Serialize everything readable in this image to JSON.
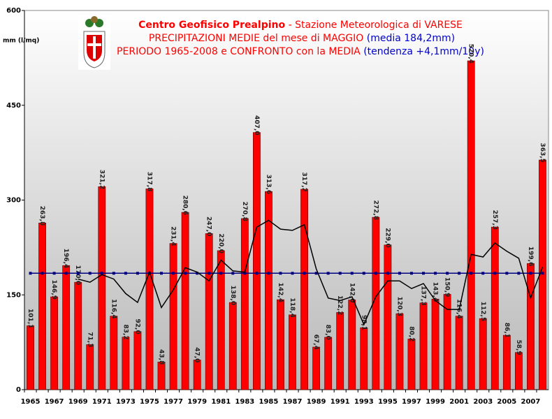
{
  "chart_data": {
    "type": "bar",
    "title_parts": [
      {
        "text": "Centro Geofisico Prealpino",
        "color": "#ff0000",
        "bold": true
      },
      {
        "text": " - Stazione Meteorologica di VARESE",
        "color": "#ff0000",
        "bold": false
      }
    ],
    "subtitle_lines": [
      [
        {
          "text": "PRECIPITAZIONI MEDIE del mese di MAGGIO",
          "color": "#ff0000"
        },
        {
          "text": " (media 184,2mm)",
          "color": "#0000cc"
        }
      ],
      [
        {
          "text": "PERIODO 1965-2008 e CONFRONTO con la MEDIA",
          "color": "#ff0000"
        },
        {
          "text": " (tendenza +4,1mm/10y)",
          "color": "#0000cc"
        }
      ]
    ],
    "y_label": "mm (l/mq)",
    "categories": [
      "1965",
      null,
      "1967",
      null,
      "1969",
      null,
      "1971",
      null,
      "1973",
      null,
      "1975",
      null,
      "1977",
      null,
      "1979",
      null,
      "1981",
      null,
      "1983",
      null,
      "1985",
      null,
      "1987",
      null,
      "1989",
      null,
      "1991",
      null,
      "1993",
      null,
      "1995",
      null,
      "1997",
      null,
      "1999",
      null,
      "2001",
      null,
      "2003",
      null,
      "2005",
      null,
      "2007",
      null
    ],
    "series": [
      {
        "color": "#ff0000",
        "values": [
          101.1,
          263.8,
          146.9,
          196.4,
          170.0,
          71.3,
          321.2,
          116.4,
          83.2,
          92.0,
          317.8,
          43.8,
          231.4,
          280.6,
          47.0,
          247.0,
          220.0,
          138.0,
          270.8,
          407.0,
          313.6,
          142.4,
          118.4,
          317.2,
          67.4,
          83.0,
          122.2,
          142.0,
          98.1,
          272.8,
          229.0,
          120.3,
          80.2,
          137.3,
          143.4,
          150.9,
          116.4,
          520.4,
          112.5,
          257.3,
          86.1,
          58.9,
          199.6,
          363.5
        ],
        "value_labels": [
          "101,1",
          "263,8",
          "146,9",
          "196,4",
          "170,0",
          "71,3",
          "321,2",
          "116,4",
          "83,2",
          "92,0",
          "317,8",
          "43,8",
          "231,4",
          "280,6",
          "47,0",
          "247,0",
          "220,0",
          "138,0",
          "270,8",
          "407,0",
          "313,6",
          "142,4",
          "118,4",
          "317,2",
          "67,4",
          "83,0",
          "122,2",
          "142,0",
          "98,1",
          "272,8",
          "229,0",
          "120,3",
          "80,2",
          "137,3",
          "143,4",
          "150,9",
          "116,4",
          "520,4",
          "112,5",
          "257,3",
          "86,1",
          "58,9",
          "199,6",
          "363,5"
        ]
      }
    ],
    "mean": {
      "value": 184.2,
      "color": "#000080"
    },
    "trend": {
      "color": "#000000",
      "values": [
        null,
        null,
        null,
        null,
        175,
        170,
        182,
        175,
        152,
        138,
        186,
        130,
        158,
        193,
        186,
        172,
        205,
        188,
        186,
        257,
        268,
        254,
        252,
        261,
        191,
        145,
        141,
        147,
        103,
        147,
        172,
        172,
        160,
        168,
        141,
        127,
        127,
        214,
        210,
        232,
        219,
        208,
        145,
        194
      ]
    },
    "ylim": [
      0,
      600
    ],
    "yticks": [
      0,
      150,
      300,
      450,
      600
    ],
    "grid": false
  }
}
